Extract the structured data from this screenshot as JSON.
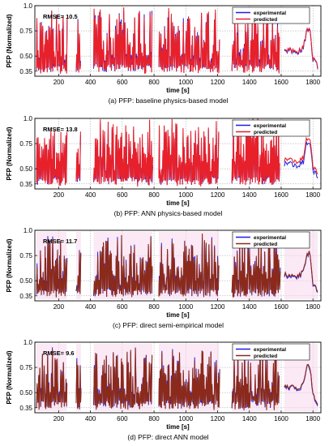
{
  "figure": {
    "xlabel": "time [s]",
    "ylabel": "PFP (Normalized)"
  },
  "chart_data": [
    {
      "type": "line",
      "title": "",
      "caption": "(a) PFP: baseline physics-based model",
      "annotation": "RMSE= 10.5",
      "xlabel": "time [s]",
      "ylabel": "PFP (Normalized)",
      "xlim": [
        50,
        1850
      ],
      "ylim": [
        0.3,
        1.0
      ],
      "xticks": [
        "200",
        "400",
        "600",
        "800",
        "1000",
        "1200",
        "1400",
        "1600",
        "1800"
      ],
      "yticks": [
        "1.0",
        "0.75",
        "0.50",
        "0.35"
      ],
      "grid": true,
      "legend": "top-right",
      "series": [
        {
          "name": "experimental",
          "color": "#1f1fe0"
        },
        {
          "name": "predicted",
          "color": "#e8202a"
        }
      ],
      "segments": [
        {
          "start": 60,
          "end": 250
        },
        {
          "start": 310,
          "end": 340
        },
        {
          "start": 420,
          "end": 790
        },
        {
          "start": 830,
          "end": 1210
        },
        {
          "start": 1290,
          "end": 1590
        },
        {
          "start": 1620,
          "end": 1830
        }
      ],
      "trend": [
        [
          1660,
          0.55
        ],
        [
          1700,
          0.52
        ],
        [
          1740,
          0.58
        ],
        [
          1760,
          0.74
        ],
        [
          1780,
          0.77
        ],
        [
          1800,
          0.47
        ],
        [
          1820,
          0.42
        ],
        [
          1840,
          0.36
        ]
      ]
    },
    {
      "type": "line",
      "title": "",
      "caption": "(b) PFP: ANN physics-based model",
      "annotation": "RMSE= 13.8",
      "xlabel": "time [s]",
      "ylabel": "PFP (Normalized)",
      "xlim": [
        50,
        1850
      ],
      "ylim": [
        0.3,
        1.0
      ],
      "xticks": [
        "200",
        "400",
        "600",
        "800",
        "1000",
        "1200",
        "1400",
        "1600",
        "1800"
      ],
      "yticks": [
        "1.0",
        "0.75",
        "0.50",
        "0.35"
      ],
      "grid": true,
      "legend": "top-right",
      "series": [
        {
          "name": "experimental",
          "color": "#1f1fe0"
        },
        {
          "name": "predicted",
          "color": "#e8202a"
        }
      ],
      "segments": [
        {
          "start": 60,
          "end": 250
        },
        {
          "start": 310,
          "end": 340
        },
        {
          "start": 420,
          "end": 790
        },
        {
          "start": 830,
          "end": 1210
        },
        {
          "start": 1290,
          "end": 1590
        },
        {
          "start": 1620,
          "end": 1830
        }
      ],
      "trend": [
        [
          1660,
          0.55
        ],
        [
          1700,
          0.53
        ],
        [
          1740,
          0.57
        ],
        [
          1760,
          0.76
        ],
        [
          1780,
          0.78
        ],
        [
          1800,
          0.48
        ],
        [
          1820,
          0.44
        ],
        [
          1840,
          0.37
        ]
      ]
    },
    {
      "type": "line",
      "title": "",
      "caption": "(c) PFP: direct semi-empirical model",
      "annotation": "RMSE= 11.7",
      "xlabel": "time [s]",
      "ylabel": "PFP (Normalized)",
      "xlim": [
        50,
        1850
      ],
      "ylim": [
        0.3,
        1.0
      ],
      "xticks": [
        "200",
        "400",
        "600",
        "800",
        "1000",
        "1200",
        "1400",
        "1600",
        "1800"
      ],
      "yticks": [
        "1.0",
        "0.75",
        "0.50",
        "0.35"
      ],
      "grid": true,
      "legend": "top-right",
      "series": [
        {
          "name": "experimental",
          "color": "#1f1fe0"
        },
        {
          "name": "predicted",
          "color": "#8b2a1a"
        }
      ],
      "segments": [
        {
          "start": 60,
          "end": 250
        },
        {
          "start": 310,
          "end": 340
        },
        {
          "start": 420,
          "end": 790
        },
        {
          "start": 830,
          "end": 1210
        },
        {
          "start": 1290,
          "end": 1590
        },
        {
          "start": 1620,
          "end": 1830
        }
      ],
      "trend": [
        [
          1660,
          0.55
        ],
        [
          1700,
          0.52
        ],
        [
          1740,
          0.58
        ],
        [
          1760,
          0.74
        ],
        [
          1780,
          0.77
        ],
        [
          1800,
          0.47
        ],
        [
          1820,
          0.42
        ],
        [
          1840,
          0.36
        ]
      ]
    },
    {
      "type": "line",
      "title": "",
      "caption": "(d) PFP: direct ANN model",
      "annotation": "RMSE= 9.6",
      "xlabel": "time [s]",
      "ylabel": "PFP (Normalized)",
      "xlim": [
        50,
        1850
      ],
      "ylim": [
        0.3,
        1.0
      ],
      "xticks": [
        "200",
        "400",
        "600",
        "800",
        "1000",
        "1200",
        "1400",
        "1600",
        "1800"
      ],
      "yticks": [
        "1.0",
        "0.75",
        "0.50",
        "0.35"
      ],
      "grid": true,
      "legend": "top-right",
      "series": [
        {
          "name": "experimental",
          "color": "#1f1fe0"
        },
        {
          "name": "predicted",
          "color": "#8b2a1a"
        }
      ],
      "segments": [
        {
          "start": 60,
          "end": 250
        },
        {
          "start": 310,
          "end": 340
        },
        {
          "start": 420,
          "end": 790
        },
        {
          "start": 830,
          "end": 1210
        },
        {
          "start": 1290,
          "end": 1590
        },
        {
          "start": 1620,
          "end": 1830
        }
      ],
      "trend": [
        [
          1660,
          0.55
        ],
        [
          1700,
          0.52
        ],
        [
          1740,
          0.58
        ],
        [
          1760,
          0.74
        ],
        [
          1780,
          0.77
        ],
        [
          1800,
          0.47
        ],
        [
          1820,
          0.42
        ],
        [
          1840,
          0.36
        ]
      ]
    }
  ]
}
